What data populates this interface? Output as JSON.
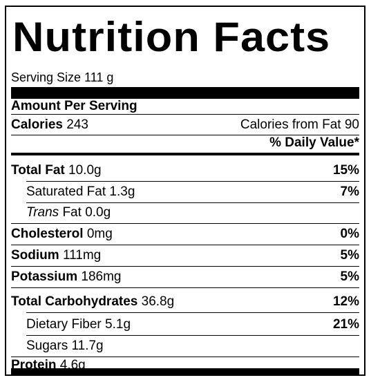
{
  "title": "Nutrition Facts",
  "serving_size": "Serving Size 111 g",
  "amount_per_serving": "Amount Per Serving",
  "calories": {
    "label": "Calories",
    "value": "243",
    "from_fat": "Calories from Fat 90"
  },
  "daily_value_header": "% Daily Value*",
  "nutrients": [
    {
      "name": "Total Fat",
      "amount": "10.0g",
      "dv": "15%"
    },
    {
      "name": "Saturated Fat",
      "amount": "1.3g",
      "dv": "7%"
    },
    {
      "name_italic": "Trans",
      "name": "Fat",
      "amount": "0.0g",
      "dv": ""
    },
    {
      "name": "Cholesterol",
      "amount": "0mg",
      "dv": "0%"
    },
    {
      "name": "Sodium",
      "amount": "111mg",
      "dv": "5%"
    },
    {
      "name": "Potassium",
      "amount": "186mg",
      "dv": "5%"
    },
    {
      "name": "Total Carbohydrates",
      "amount": "36.8g",
      "dv": "12%"
    },
    {
      "name": "Dietary Fiber",
      "amount": "5.1g",
      "dv": "21%"
    },
    {
      "name": "Sugars",
      "amount": "11.7g",
      "dv": ""
    },
    {
      "name": "Protein",
      "amount": "4.6g",
      "dv": ""
    }
  ]
}
